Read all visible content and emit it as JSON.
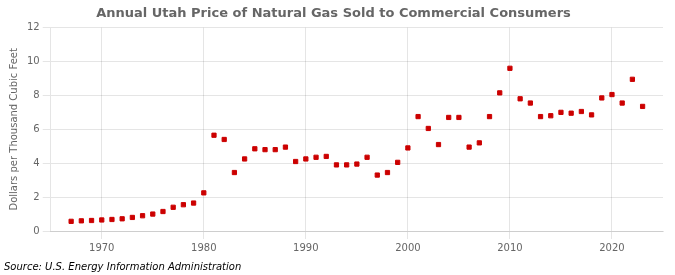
{
  "chart_data": {
    "type": "scatter",
    "title": "Annual Utah Price of Natural Gas Sold to Commercial Consumers",
    "ylabel": "Dollars per Thousand Cubic Feet",
    "annotations": [
      "Source: U.S. Energy Information Administration"
    ],
    "x": [
      1967,
      1968,
      1969,
      1970,
      1971,
      1972,
      1973,
      1974,
      1975,
      1976,
      1977,
      1978,
      1979,
      1980,
      1981,
      1982,
      1983,
      1984,
      1985,
      1986,
      1987,
      1988,
      1989,
      1990,
      1991,
      1992,
      1993,
      1994,
      1995,
      1996,
      1997,
      1998,
      1999,
      2000,
      2001,
      2002,
      2003,
      2004,
      2005,
      2006,
      2007,
      2008,
      2009,
      2010,
      2011,
      2012,
      2013,
      2014,
      2015,
      2016,
      2017,
      2018,
      2019,
      2020,
      2021,
      2022,
      2023
    ],
    "values": [
      0.57,
      0.6,
      0.62,
      0.65,
      0.68,
      0.72,
      0.8,
      0.9,
      1.0,
      1.15,
      1.4,
      1.55,
      1.65,
      2.25,
      5.65,
      5.4,
      3.45,
      4.25,
      4.85,
      4.8,
      4.8,
      4.95,
      4.1,
      4.25,
      4.35,
      4.4,
      3.9,
      3.9,
      3.95,
      4.35,
      3.3,
      3.45,
      4.05,
      4.9,
      6.75,
      6.05,
      5.1,
      6.7,
      6.7,
      4.95,
      5.2,
      6.75,
      8.15,
      9.6,
      7.8,
      7.55,
      6.75,
      6.8,
      7.0,
      6.95,
      7.05,
      6.85,
      7.85,
      8.05,
      7.55,
      8.95,
      7.35
    ],
    "color": "#cc0000",
    "marker": "square",
    "xlim": [
      1965,
      2025
    ],
    "ylim": [
      0,
      12
    ],
    "xticks": [
      1970,
      1980,
      1990,
      2000,
      2010,
      2020
    ],
    "yticks": [
      0,
      2,
      4,
      6,
      8,
      10,
      12
    ],
    "grid": true
  }
}
